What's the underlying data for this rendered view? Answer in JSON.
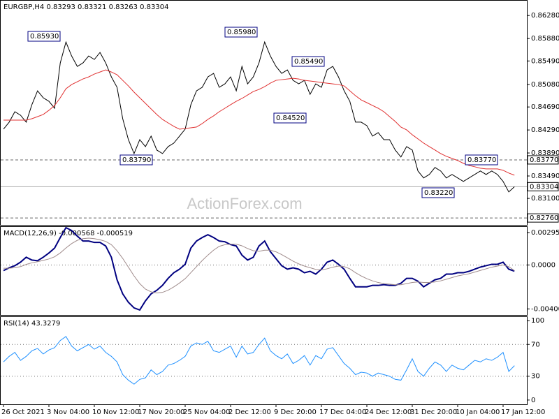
{
  "chart_data": [
    {
      "type": "line",
      "title": "EURGBP,H4",
      "ohlc": [
        0.83293,
        0.83321,
        0.83263,
        0.83304
      ],
      "watermark": "ActionForex.com",
      "series": [
        {
          "color": "#000000",
          "values": [
            0.84304,
            0.84426,
            0.84607,
            0.84547,
            0.84426,
            0.84729,
            0.84971,
            0.8485,
            0.84789,
            0.84668,
            0.85456,
            0.85819,
            0.85577,
            0.85395,
            0.85456,
            0.85577,
            0.85516,
            0.85638,
            0.85456,
            0.85213,
            0.85032,
            0.84486,
            0.84122,
            0.8388,
            0.84122,
            0.84001,
            0.84183,
            0.83941,
            0.8388,
            0.84001,
            0.84062,
            0.84183,
            0.84304,
            0.84729,
            0.84971,
            0.85032,
            0.85213,
            0.85274,
            0.85032,
            0.85092,
            0.85213,
            0.84971,
            0.85395,
            0.85092,
            0.85213,
            0.85456,
            0.85819,
            0.85577,
            0.85395,
            0.85274,
            0.85335,
            0.85153,
            0.85092,
            0.85153,
            0.8491,
            0.85092,
            0.85032,
            0.85335,
            0.85395,
            0.85213,
            0.84971,
            0.84789,
            0.84426,
            0.84426,
            0.84365,
            0.84183,
            0.84244,
            0.84122,
            0.84122,
            0.83941,
            0.83819,
            0.84001,
            0.83941,
            0.83577,
            0.83456,
            0.83516,
            0.83638,
            0.83577,
            0.83456,
            0.83516,
            0.83456,
            0.83395,
            0.83456,
            0.83516,
            0.83577,
            0.83516,
            0.83577,
            0.83516,
            0.83395,
            0.83213,
            0.83304
          ]
        },
        {
          "color": "#e03030",
          "values": [
            0.84462,
            0.84462,
            0.84462,
            0.84462,
            0.84462,
            0.84486,
            0.84522,
            0.84559,
            0.84632,
            0.84716,
            0.8485,
            0.85007,
            0.8508,
            0.85129,
            0.85177,
            0.85213,
            0.85262,
            0.85298,
            0.85335,
            0.85298,
            0.8525,
            0.85153,
            0.85056,
            0.84947,
            0.8485,
            0.84753,
            0.84656,
            0.84559,
            0.84474,
            0.84413,
            0.84353,
            0.84304,
            0.84316,
            0.84328,
            0.84341,
            0.84401,
            0.84474,
            0.84535,
            0.84607,
            0.84668,
            0.84729,
            0.84789,
            0.84838,
            0.84898,
            0.84959,
            0.84995,
            0.85044,
            0.85104,
            0.85153,
            0.85165,
            0.85177,
            0.85189,
            0.85177,
            0.85153,
            0.85141,
            0.85129,
            0.85116,
            0.85104,
            0.85092,
            0.8508,
            0.85056,
            0.84971,
            0.84886,
            0.84813,
            0.84765,
            0.84716,
            0.84668,
            0.84607,
            0.84522,
            0.84438,
            0.84341,
            0.84292,
            0.84207,
            0.84135,
            0.84062,
            0.84001,
            0.83941,
            0.8388,
            0.83832,
            0.83795,
            0.83759,
            0.8371,
            0.83674,
            0.8365,
            0.83625,
            0.83613,
            0.83613,
            0.83613,
            0.83589,
            0.83541,
            0.83504
          ]
        }
      ],
      "ylim": [
        0.8264,
        0.8655
      ],
      "yticks": [
        {
          "value": 0.8628,
          "label": "0.86280"
        },
        {
          "value": 0.8588,
          "label": "0.85880"
        },
        {
          "value": 0.8549,
          "label": "0.85490"
        },
        {
          "value": 0.8508,
          "label": "0.85080"
        },
        {
          "value": 0.8469,
          "label": "0.84690"
        },
        {
          "value": 0.8429,
          "label": "0.84290"
        },
        {
          "value": 0.8389,
          "label": "0.83890"
        },
        {
          "value": 0.8349,
          "label": "0.83490"
        },
        {
          "value": 0.831,
          "label": "0.83100"
        }
      ],
      "levels": [
        {
          "value": 0.8377,
          "label": "0.83770"
        },
        {
          "value": 0.8276,
          "label": "0.82760"
        }
      ],
      "annotations": [
        "0.85930",
        "0.83790",
        "0.85980",
        "0.84520",
        "0.85490",
        "0.83220",
        "0.83770"
      ]
    },
    {
      "type": "line",
      "title": "MACD(12,26,9)",
      "series": [
        {
          "color": "#000080",
          "values": [
            -0.000514,
            -0.000257,
            -6.4e-05,
            0.000257,
            0.000707,
            0.00045,
            0.000385,
            0.000707,
            0.001092,
            0.001542,
            0.002505,
            0.003405,
            0.003148,
            0.002634,
            0.002184,
            0.002184,
            0.002056,
            0.002056,
            0.001734,
            0.000707,
            -0.001349,
            -0.002634,
            -0.003405,
            -0.003919,
            -0.004111,
            -0.003276,
            -0.002634,
            -0.002313,
            -0.001863,
            -0.001221,
            -0.000707,
            -0.000385,
            6.4e-05,
            0.001542,
            0.002184,
            0.002505,
            0.002762,
            0.002505,
            0.002184,
            0.00212,
            0.001863,
            0.001734,
            0.000899,
            0.00045,
            0.000707,
            0.001734,
            0.002184,
            0.001221,
            0.000578,
            -6.4e-05,
            -0.000385,
            -0.000257,
            -0.000385,
            -0.000707,
            -0.000578,
            -0.000835,
            -0.000385,
            0.000257,
            0.00045,
            6.4e-05,
            -0.000385,
            -0.001221,
            -0.001991,
            -0.001991,
            -0.001991,
            -0.001863,
            -0.001863,
            -0.001799,
            -0.001863,
            -0.001863,
            -0.00167,
            -0.001221,
            -0.001221,
            -0.001478,
            -0.001991,
            -0.00167,
            -0.001349,
            -0.001221,
            -0.000835,
            -0.000835,
            -0.000707,
            -0.000707,
            -0.000578,
            -0.000385,
            -0.000193,
            -6.4e-05,
            6.4e-05,
            6.4e-05,
            0.000257,
            -0.000385,
            -0.000568
          ]
        },
        {
          "color": "#a08c8c",
          "values": [
            -0.0003,
            -0.0003,
            -0.00025,
            -0.00015,
            5e-05,
            0.0002,
            0.0003,
            0.00042,
            0.00055,
            0.00075,
            0.0011,
            0.00155,
            0.00195,
            0.00225,
            0.0024,
            0.00245,
            0.0024,
            0.0023,
            0.00215,
            0.00185,
            0.0013,
            0.0006,
            -0.0002,
            -0.001,
            -0.0017,
            -0.0022,
            -0.00245,
            -0.00255,
            -0.0025,
            -0.0023,
            -0.002,
            -0.00165,
            -0.00125,
            -0.0007,
            -0.00015,
            0.0004,
            0.0009,
            0.00135,
            0.0017,
            0.00185,
            0.0019,
            0.0019,
            0.00175,
            0.0015,
            0.0013,
            0.00125,
            0.00135,
            0.00135,
            0.0012,
            0.00095,
            0.00065,
            0.00035,
            0.0001,
            -0.0001,
            -0.00025,
            -0.0004,
            -0.00045,
            -0.00035,
            -0.0002,
            -0.0001,
            -0.00015,
            -0.00035,
            -0.0007,
            -0.001,
            -0.00125,
            -0.00145,
            -0.0016,
            -0.0017,
            -0.00175,
            -0.0018,
            -0.0018,
            -0.0017,
            -0.0016,
            -0.00155,
            -0.0016,
            -0.0016,
            -0.00155,
            -0.00145,
            -0.0013,
            -0.00115,
            -0.001,
            -0.0009,
            -0.0008,
            -0.00065,
            -0.0005,
            -0.00035,
            -0.0002,
            -0.0001,
            0,
            -0.00015,
            -0.000519
          ]
        }
      ],
      "ylim": [
        -0.00456,
        0.003533
      ],
      "yticks": [
        0.002955,
        {
          "value": 0,
          "label": "0.0000"
        },
        -0.004009
      ],
      "levels": [
        0
      ]
    },
    {
      "type": "line",
      "title": "RSI(14)",
      "categories": [
        "26 Oct 2021",
        null,
        null,
        null,
        null,
        null,
        null,
        null,
        "3 Nov 04:00",
        null,
        null,
        null,
        null,
        null,
        null,
        null,
        "10 Nov 12:00",
        null,
        null,
        null,
        null,
        null,
        null,
        null,
        "17 Nov 20:00",
        null,
        null,
        null,
        null,
        null,
        null,
        null,
        "25 Nov 04:00",
        null,
        null,
        null,
        null,
        null,
        null,
        null,
        "2 Dec 12:00",
        null,
        null,
        null,
        null,
        null,
        null,
        null,
        "9 Dec 20:00",
        null,
        null,
        null,
        null,
        null,
        null,
        null,
        "17 Dec 04:00",
        null,
        null,
        null,
        null,
        null,
        null,
        null,
        "24 Dec 12:00",
        null,
        null,
        null,
        null,
        null,
        null,
        null,
        "31 Dec 20:00",
        null,
        null,
        null,
        null,
        null,
        null,
        null,
        "10 Jan 04:00",
        null,
        null,
        null,
        null,
        null,
        null,
        null,
        "17 Jan 12:00",
        null,
        null
      ],
      "series": [
        {
          "color": "#1e90ff",
          "values": [
            48,
            55,
            60,
            50,
            55,
            62,
            65,
            58,
            63,
            66,
            75,
            80,
            68,
            62,
            66,
            70,
            64,
            68,
            60,
            55,
            48,
            32,
            25,
            20,
            26,
            28,
            38,
            32,
            36,
            44,
            46,
            50,
            55,
            68,
            72,
            70,
            74,
            62,
            60,
            64,
            68,
            54,
            68,
            58,
            60,
            70,
            78,
            62,
            56,
            52,
            58,
            46,
            50,
            56,
            44,
            56,
            52,
            64,
            66,
            56,
            46,
            40,
            32,
            35,
            34,
            30,
            34,
            32,
            30,
            26,
            25,
            38,
            52,
            36,
            30,
            40,
            48,
            44,
            36,
            44,
            40,
            38,
            44,
            50,
            48,
            52,
            50,
            54,
            60,
            36,
            43.3279
          ]
        }
      ],
      "ylim": [
        -5.4,
        105.4
      ],
      "yticks": [
        100,
        70,
        30,
        0
      ],
      "levels": [
        70,
        30
      ]
    }
  ]
}
